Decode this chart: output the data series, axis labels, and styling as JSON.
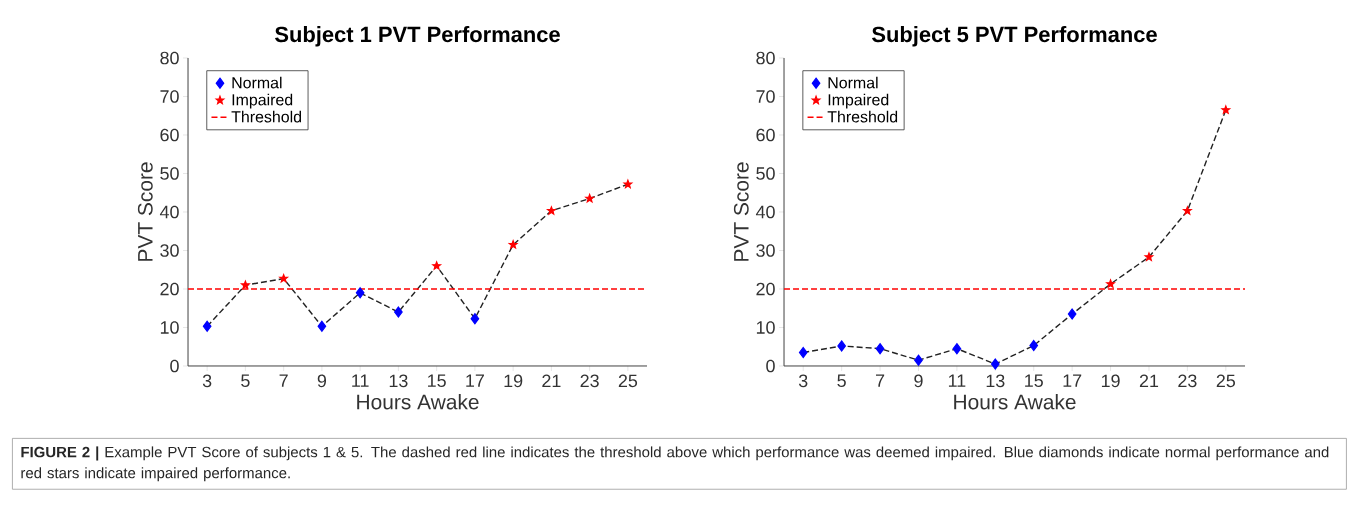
{
  "chart_data": [
    {
      "type": "line",
      "title": "Subject 1 PVT Performance",
      "xlabel": "Hours Awake",
      "ylabel": "PVT Score",
      "x": [
        3,
        5,
        7,
        9,
        11,
        13,
        15,
        17,
        19,
        21,
        23,
        25
      ],
      "series": [
        {
          "type": "line",
          "color": "#222222",
          "line_style": "dashed",
          "marker": "none",
          "values": [
            10.3,
            21,
            22.7,
            10.3,
            19,
            14,
            26,
            12.3,
            31.5,
            40.3,
            43.5,
            47.2
          ]
        },
        {
          "type": "scatter",
          "name": "Normal",
          "color": "#0000ff",
          "marker": "diamond",
          "x": [
            3,
            9,
            11,
            13,
            17
          ],
          "values": [
            10.3,
            10.3,
            19,
            14,
            12.3
          ]
        },
        {
          "type": "scatter",
          "name": "Impaired",
          "color": "#ff0000",
          "marker": "star",
          "x": [
            5,
            7,
            15,
            19,
            21,
            23,
            25
          ],
          "values": [
            21,
            22.7,
            26,
            31.5,
            40.3,
            43.5,
            47.2
          ]
        }
      ],
      "ref_lines": [
        {
          "axis": "y",
          "value": 20,
          "label": "Threshold",
          "color": "#ff0000",
          "line_style": "dashed"
        }
      ],
      "xlim": [
        2,
        26
      ],
      "ylim": [
        0,
        80
      ],
      "xticks": [
        3,
        5,
        7,
        9,
        11,
        13,
        15,
        17,
        19,
        21,
        23,
        25
      ],
      "yticks": [
        0,
        10,
        20,
        30,
        40,
        50,
        60,
        70,
        80
      ],
      "legend": "top left",
      "annotations": [
        "**FIGURE 2 |** Example PVT Score of subjects 1 & 5. The dashed red line indicates the threshold above which performance was deemed impaired. Blue diamonds indicate normal performance and red stars indicate impaired performance."
      ]
    },
    {
      "type": "line",
      "title": "Subject 5 PVT Performance",
      "xlabel": "Hours Awake",
      "ylabel": "PVT Score",
      "x": [
        3,
        5,
        7,
        9,
        11,
        13,
        15,
        17,
        19,
        21,
        23,
        25
      ],
      "series": [
        {
          "type": "line",
          "color": "#222222",
          "line_style": "dashed",
          "marker": "none",
          "values": [
            3.5,
            5.2,
            4.5,
            1.5,
            4.5,
            0.5,
            5.3,
            13.5,
            21.3,
            28.3,
            40.3,
            66.5
          ]
        },
        {
          "type": "scatter",
          "name": "Normal",
          "color": "#0000ff",
          "marker": "diamond",
          "x": [
            3,
            5,
            7,
            9,
            11,
            13,
            15,
            17
          ],
          "values": [
            3.5,
            5.2,
            4.5,
            1.5,
            4.5,
            0.5,
            5.3,
            13.5
          ]
        },
        {
          "type": "scatter",
          "name": "Impaired",
          "color": "#ff0000",
          "marker": "star",
          "x": [
            19,
            21,
            23,
            25
          ],
          "values": [
            21.3,
            28.3,
            40.3,
            66.5
          ]
        }
      ],
      "ref_lines": [
        {
          "axis": "y",
          "value": 20,
          "label": "Threshold",
          "color": "#ff0000",
          "line_style": "dashed"
        }
      ],
      "xlim": [
        2,
        26
      ],
      "ylim": [
        0,
        80
      ],
      "xticks": [
        3,
        5,
        7,
        9,
        11,
        13,
        15,
        17,
        19,
        21,
        23,
        25
      ],
      "yticks": [
        0,
        10,
        20,
        30,
        40,
        50,
        60,
        70,
        80
      ],
      "legend": "top left"
    }
  ]
}
